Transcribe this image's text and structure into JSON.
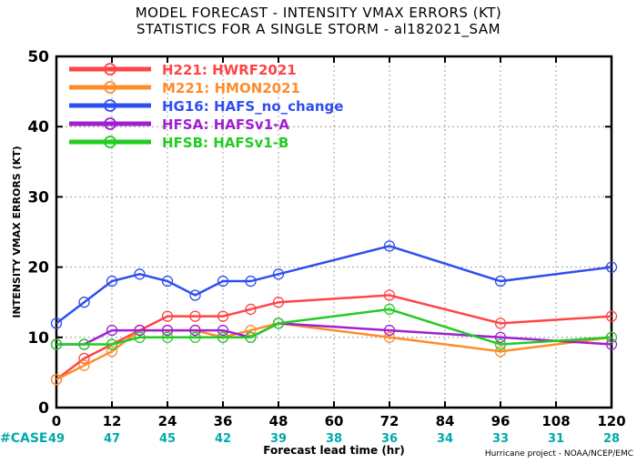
{
  "chart_data": {
    "type": "line",
    "title": "MODEL FORECAST - INTENSITY VMAX ERRORS (KT)",
    "subtitle": "STATISTICS FOR A SINGLE STORM - al182021_SAM",
    "xlabel": "Forecast lead time (hr)",
    "ylabel": "INTENSITY VMAX ERRORS (KT)",
    "xlim": [
      0,
      120
    ],
    "ylim": [
      0,
      50
    ],
    "x_ticks": [
      0,
      12,
      24,
      36,
      48,
      60,
      72,
      84,
      96,
      108,
      120
    ],
    "y_ticks": [
      0,
      10,
      20,
      30,
      40,
      50
    ],
    "grid": true,
    "legend_position": "top-left",
    "series": [
      {
        "name": "H221:  HWRF2021",
        "color": "#ff4444",
        "x": [
          0,
          6,
          12,
          18,
          24,
          30,
          36,
          42,
          48,
          72,
          96,
          120
        ],
        "y": [
          4,
          7,
          9,
          11,
          13,
          13,
          13,
          14,
          15,
          16,
          12,
          13
        ]
      },
      {
        "name": "M221:  HMON2021",
        "color": "#ff8c2a",
        "x": [
          0,
          6,
          12,
          18,
          24,
          30,
          36,
          42,
          48,
          72,
          96,
          120
        ],
        "y": [
          4,
          6,
          8,
          11,
          11,
          11,
          10,
          11,
          12,
          10,
          8,
          10
        ]
      },
      {
        "name": "HG16:  HAFS_no_change",
        "color": "#2f4ef0",
        "x": [
          0,
          6,
          12,
          18,
          24,
          30,
          36,
          42,
          48,
          72,
          96,
          120
        ],
        "y": [
          12,
          15,
          18,
          19,
          18,
          16,
          18,
          18,
          19,
          23,
          18,
          20
        ]
      },
      {
        "name": "HFSA:  HAFSv1-A",
        "color": "#a020d0",
        "x": [
          0,
          6,
          12,
          18,
          24,
          30,
          36,
          42,
          48,
          72,
          96,
          120
        ],
        "y": [
          9,
          9,
          11,
          11,
          11,
          11,
          11,
          10,
          12,
          11,
          10,
          9
        ]
      },
      {
        "name": "HFSB:  HAFSv1-B",
        "color": "#22cc22",
        "x": [
          0,
          6,
          12,
          18,
          24,
          30,
          36,
          42,
          48,
          72,
          96,
          120
        ],
        "y": [
          9,
          9,
          9,
          10,
          10,
          10,
          10,
          10,
          12,
          14,
          9,
          10
        ]
      }
    ],
    "case_label": "#CASE",
    "case_label_color": "#00aaaa",
    "cases": [
      {
        "x": 0,
        "n": "49"
      },
      {
        "x": 12,
        "n": "47"
      },
      {
        "x": 24,
        "n": "45"
      },
      {
        "x": 36,
        "n": "42"
      },
      {
        "x": 48,
        "n": "39"
      },
      {
        "x": 60,
        "n": "38"
      },
      {
        "x": 72,
        "n": "36"
      },
      {
        "x": 84,
        "n": "34"
      },
      {
        "x": 96,
        "n": "33"
      },
      {
        "x": 108,
        "n": "31"
      },
      {
        "x": 120,
        "n": "28"
      }
    ],
    "footer": "Hurricane project - NOAA/NCEP/EMC"
  }
}
